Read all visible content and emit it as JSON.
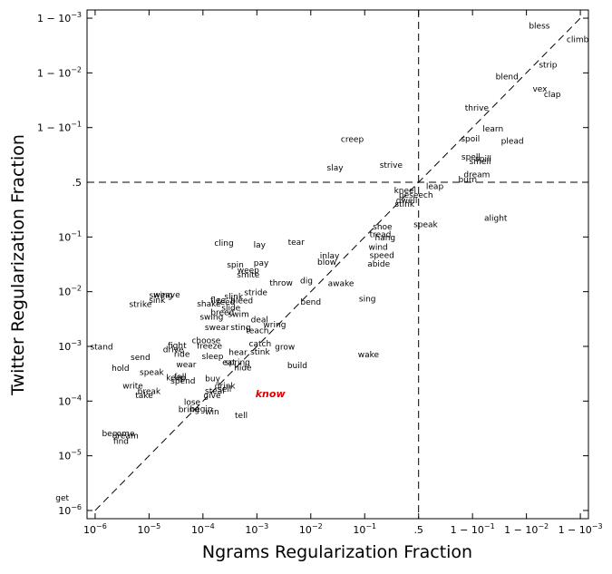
{
  "chart_data": {
    "type": "scatter",
    "title": "",
    "xlabel": "Ngrams Regularization Fraction",
    "ylabel": "Twitter Regularization Fraction",
    "scale": "logit",
    "xlim": [
      "10^-6",
      "1-10^-3"
    ],
    "ylim": [
      "10^-6",
      "1-10^-3"
    ],
    "threshold": ".5",
    "grid": false,
    "ticks": {
      "x": [
        {
          "label": "10",
          "exp": "−6",
          "pre": ""
        },
        {
          "label": "10",
          "exp": "−5",
          "pre": ""
        },
        {
          "label": "10",
          "exp": "−4",
          "pre": ""
        },
        {
          "label": "10",
          "exp": "−3",
          "pre": ""
        },
        {
          "label": "10",
          "exp": "−2",
          "pre": ""
        },
        {
          "label": "10",
          "exp": "−1",
          "pre": ""
        },
        {
          "label": ".5",
          "exp": "",
          "pre": ""
        },
        {
          "label": "10",
          "exp": "−1",
          "pre": "1 − "
        },
        {
          "label": "10",
          "exp": "−2",
          "pre": "1 − "
        },
        {
          "label": "10",
          "exp": "−3",
          "pre": "1 − "
        }
      ],
      "y": [
        {
          "label": "10",
          "exp": "−6",
          "pre": ""
        },
        {
          "label": "10",
          "exp": "−5",
          "pre": ""
        },
        {
          "label": "10",
          "exp": "−4",
          "pre": ""
        },
        {
          "label": "10",
          "exp": "−3",
          "pre": ""
        },
        {
          "label": "10",
          "exp": "−2",
          "pre": ""
        },
        {
          "label": "10",
          "exp": "−1",
          "pre": ""
        },
        {
          "label": ".5",
          "exp": "",
          "pre": ""
        },
        {
          "label": "10",
          "exp": "−1",
          "pre": "1 − "
        },
        {
          "label": "10",
          "exp": "−2",
          "pre": "1 − "
        },
        {
          "label": "10",
          "exp": "−3",
          "pre": "1 − "
        }
      ]
    },
    "highlight_color": "#e00000",
    "points": [
      {
        "w": "bless",
        "x": 2.24,
        "y": 2.85
      },
      {
        "w": "climb",
        "x": 2.95,
        "y": 2.6
      },
      {
        "w": "strip",
        "x": 2.4,
        "y": 2.14
      },
      {
        "w": "blend",
        "x": 1.64,
        "y": 1.92
      },
      {
        "w": "vex",
        "x": 2.25,
        "y": 1.7
      },
      {
        "w": "clap",
        "x": 2.48,
        "y": 1.6
      },
      {
        "w": "thrive",
        "x": 1.08,
        "y": 1.35
      },
      {
        "w": "learn",
        "x": 1.38,
        "y": 0.97
      },
      {
        "w": "spoil",
        "x": 0.96,
        "y": 0.79
      },
      {
        "w": "plead",
        "x": 1.74,
        "y": 0.75
      },
      {
        "w": "spell",
        "x": 0.97,
        "y": 0.46
      },
      {
        "w": "spill",
        "x": 1.2,
        "y": 0.42
      },
      {
        "w": "smell",
        "x": 1.14,
        "y": 0.37
      },
      {
        "w": "dream",
        "x": 1.08,
        "y": 0.13
      },
      {
        "w": "burn",
        "x": 0.91,
        "y": 0.04
      },
      {
        "w": "creep",
        "x": -1.23,
        "y": 0.78
      },
      {
        "w": "slay",
        "x": -1.55,
        "y": 0.26
      },
      {
        "w": "strive",
        "x": -0.51,
        "y": 0.31
      },
      {
        "w": "leap",
        "x": 0.3,
        "y": -0.08
      },
      {
        "w": "kneel",
        "x": -0.25,
        "y": -0.16
      },
      {
        "w": "beseech",
        "x": -0.05,
        "y": -0.24
      },
      {
        "w": "dwell",
        "x": -0.22,
        "y": -0.34
      },
      {
        "w": "stink",
        "x": -0.26,
        "y": -0.41
      },
      {
        "w": "alight",
        "x": 1.43,
        "y": -0.66
      },
      {
        "w": "speak",
        "x": 0.13,
        "y": -0.78
      },
      {
        "w": "shoe",
        "x": -0.67,
        "y": -0.82
      },
      {
        "w": "tread",
        "x": -0.71,
        "y": -0.96
      },
      {
        "w": "hang",
        "x": -0.62,
        "y": -1.02
      },
      {
        "w": "wind",
        "x": -0.75,
        "y": -1.19
      },
      {
        "w": "speed",
        "x": -0.68,
        "y": -1.34
      },
      {
        "w": "abide",
        "x": -0.74,
        "y": -1.5
      },
      {
        "w": "cling",
        "x": -3.61,
        "y": -1.12
      },
      {
        "w": "lay",
        "x": -2.95,
        "y": -1.15
      },
      {
        "w": "tear",
        "x": -2.27,
        "y": -1.1
      },
      {
        "w": "inlay",
        "x": -1.65,
        "y": -1.35
      },
      {
        "w": "spin",
        "x": -3.4,
        "y": -1.52
      },
      {
        "w": "pay",
        "x": -2.92,
        "y": -1.48
      },
      {
        "w": "blow",
        "x": -1.7,
        "y": -1.47
      },
      {
        "w": "weep",
        "x": -3.16,
        "y": -1.62
      },
      {
        "w": "smite",
        "x": -3.16,
        "y": -1.7
      },
      {
        "w": "throw",
        "x": -2.55,
        "y": -1.85
      },
      {
        "w": "dig",
        "x": -2.08,
        "y": -1.81
      },
      {
        "w": "awake",
        "x": -1.44,
        "y": -1.86
      },
      {
        "w": "stride",
        "x": -3.02,
        "y": -2.02
      },
      {
        "w": "swing",
        "x": -4.78,
        "y": -2.07
      },
      {
        "w": "weave",
        "x": -4.67,
        "y": -2.06
      },
      {
        "w": "sink",
        "x": -4.85,
        "y": -2.16
      },
      {
        "w": "strike",
        "x": -5.16,
        "y": -2.24
      },
      {
        "w": "flee",
        "x": -3.72,
        "y": -2.16
      },
      {
        "w": "shake",
        "x": -3.89,
        "y": -2.23
      },
      {
        "w": "slink",
        "x": -3.43,
        "y": -2.1
      },
      {
        "w": "feed",
        "x": -3.57,
        "y": -2.2
      },
      {
        "w": "bleed",
        "x": -3.28,
        "y": -2.17
      },
      {
        "w": "slide",
        "x": -3.48,
        "y": -2.3
      },
      {
        "w": "bend",
        "x": -2.0,
        "y": -2.2
      },
      {
        "w": "sing",
        "x": -0.95,
        "y": -2.14
      },
      {
        "w": "swing",
        "x": -3.84,
        "y": -2.47
      },
      {
        "w": "breed",
        "x": -3.64,
        "y": -2.39
      },
      {
        "w": "swim",
        "x": -3.34,
        "y": -2.42
      },
      {
        "w": "deal",
        "x": -2.95,
        "y": -2.52
      },
      {
        "w": "swear",
        "x": -3.74,
        "y": -2.66
      },
      {
        "w": "sting",
        "x": -3.3,
        "y": -2.66
      },
      {
        "w": "teach",
        "x": -2.99,
        "y": -2.72
      },
      {
        "w": "wring",
        "x": -2.67,
        "y": -2.61
      },
      {
        "w": "choose",
        "x": -3.94,
        "y": -2.9
      },
      {
        "w": "stand",
        "x": -5.88,
        "y": -3.02
      },
      {
        "w": "fight",
        "x": -4.48,
        "y": -2.99
      },
      {
        "w": "drive",
        "x": -4.55,
        "y": -3.07
      },
      {
        "w": "freeze",
        "x": -3.88,
        "y": -3.0
      },
      {
        "w": "catch",
        "x": -2.94,
        "y": -2.96
      },
      {
        "w": "grow",
        "x": -2.48,
        "y": -3.02
      },
      {
        "w": "ride",
        "x": -4.39,
        "y": -3.15
      },
      {
        "w": "sleep",
        "x": -3.82,
        "y": -3.19
      },
      {
        "w": "hear",
        "x": -3.35,
        "y": -3.12
      },
      {
        "w": "stink",
        "x": -2.94,
        "y": -3.11
      },
      {
        "w": "wake",
        "x": -0.93,
        "y": -3.16
      },
      {
        "w": "send",
        "x": -5.16,
        "y": -3.21
      },
      {
        "w": "wear",
        "x": -4.31,
        "y": -3.34
      },
      {
        "w": "eat",
        "x": -3.52,
        "y": -3.3
      },
      {
        "w": "spring",
        "x": -3.36,
        "y": -3.3
      },
      {
        "w": "hide",
        "x": -3.26,
        "y": -3.4
      },
      {
        "w": "build",
        "x": -2.25,
        "y": -3.36
      },
      {
        "w": "hold",
        "x": -5.53,
        "y": -3.41
      },
      {
        "w": "speak",
        "x": -4.95,
        "y": -3.48
      },
      {
        "w": "keep",
        "x": -4.5,
        "y": -3.58
      },
      {
        "w": "fall",
        "x": -4.42,
        "y": -3.56
      },
      {
        "w": "spend",
        "x": -4.37,
        "y": -3.64
      },
      {
        "w": "buy",
        "x": -3.82,
        "y": -3.6
      },
      {
        "w": "drink",
        "x": -3.59,
        "y": -3.73
      },
      {
        "w": "write",
        "x": -5.3,
        "y": -3.73
      },
      {
        "w": "steal",
        "x": -3.78,
        "y": -3.82
      },
      {
        "w": "sell",
        "x": -3.6,
        "y": -3.79
      },
      {
        "w": "break",
        "x": -5.0,
        "y": -3.83
      },
      {
        "w": "take",
        "x": -5.09,
        "y": -3.9
      },
      {
        "w": "give",
        "x": -3.83,
        "y": -3.9
      },
      {
        "w": "lose",
        "x": -4.2,
        "y": -4.03
      },
      {
        "w": "bring",
        "x": -4.26,
        "y": -4.16
      },
      {
        "w": "begin",
        "x": -4.03,
        "y": -4.15
      },
      {
        "w": "win",
        "x": -3.83,
        "y": -4.2
      },
      {
        "w": "tell",
        "x": -3.29,
        "y": -4.27
      },
      {
        "w": "know",
        "x": -2.75,
        "y": -3.88,
        "highlight": true
      },
      {
        "w": "become",
        "x": -5.57,
        "y": -4.6
      },
      {
        "w": "dream",
        "x": -5.44,
        "y": -4.64
      },
      {
        "w": "find",
        "x": -5.52,
        "y": -4.74
      },
      {
        "w": "get",
        "x": -6.61,
        "y": -5.78
      }
    ]
  }
}
